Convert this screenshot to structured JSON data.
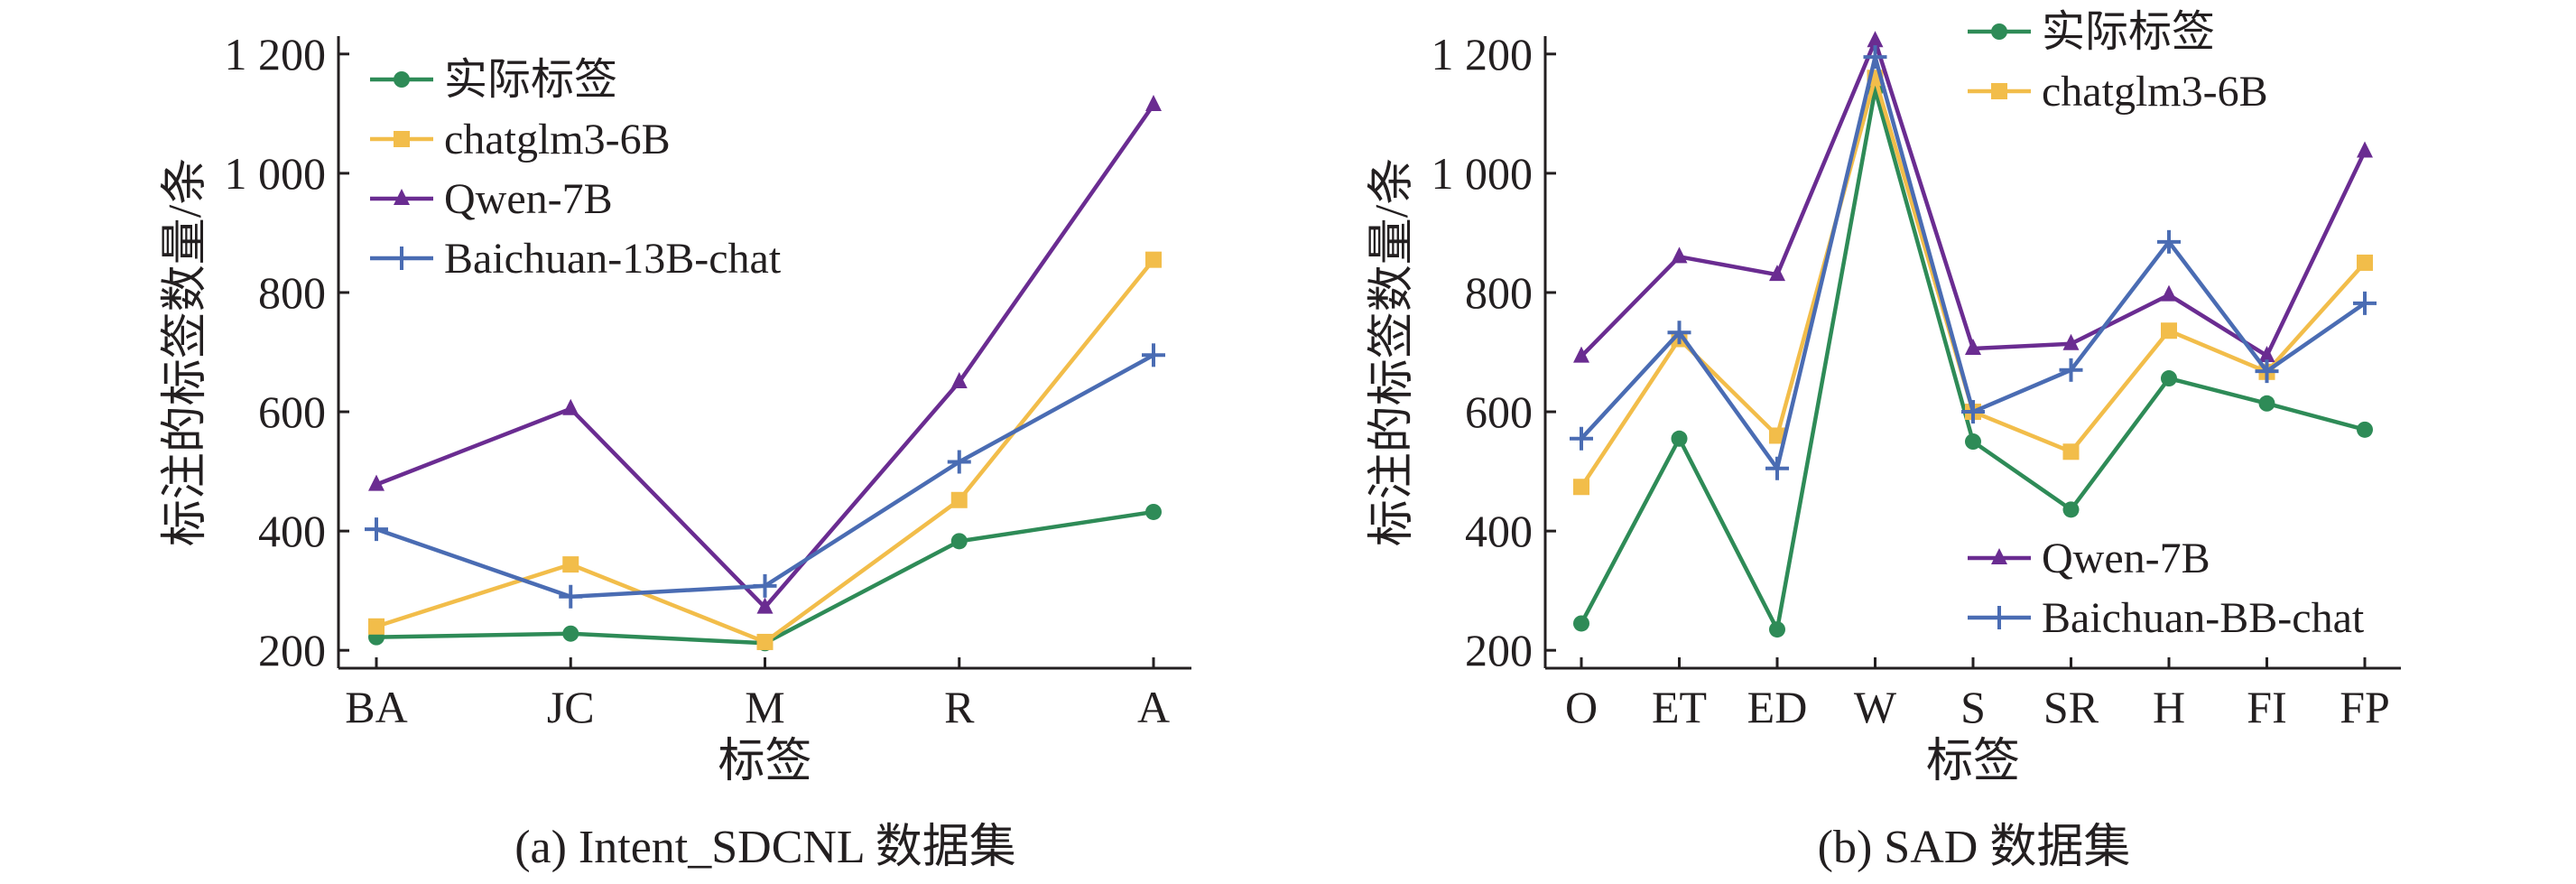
{
  "chart_data": [
    {
      "type": "line",
      "caption": "(a) Intent_SDCNL 数据集",
      "xlabel": "标签",
      "ylabel": "标注的标签数量/条",
      "ylim": [
        170,
        1230
      ],
      "yticks": [
        200,
        400,
        600,
        800,
        1000,
        1200
      ],
      "ytick_labels": [
        "200",
        "400",
        "600",
        "800",
        "1 000",
        "1 200"
      ],
      "categories": [
        "BA",
        "JC",
        "M",
        "R",
        "A"
      ],
      "legend_position": "top-left",
      "series": [
        {
          "name": "实际标签",
          "marker": "circle",
          "color": "#2e8b57",
          "values": [
            222,
            228,
            212,
            383,
            432
          ]
        },
        {
          "name": "chatglm3-6B",
          "marker": "square",
          "color": "#f2bd4a",
          "values": [
            240,
            344,
            214,
            452,
            855
          ]
        },
        {
          "name": "Qwen-7B",
          "marker": "triangle",
          "color": "#6a2c91",
          "values": [
            478,
            605,
            272,
            650,
            1115
          ]
        },
        {
          "name": "Baichuan-13B-chat",
          "marker": "plus",
          "color": "#4a6cb3",
          "values": [
            403,
            290,
            308,
            516,
            695
          ]
        }
      ]
    },
    {
      "type": "line",
      "caption": "(b) SAD 数据集",
      "xlabel": "标签",
      "ylabel": "标注的标签数量/条",
      "ylim": [
        170,
        1230
      ],
      "yticks": [
        200,
        400,
        600,
        800,
        1000,
        1200
      ],
      "ytick_labels": [
        "200",
        "400",
        "600",
        "800",
        "1 000",
        "1 200"
      ],
      "categories": [
        "O",
        "ET",
        "ED",
        "W",
        "S",
        "SR",
        "H",
        "FI",
        "FP"
      ],
      "legend_position": "split: top-left and bottom-right",
      "series": [
        {
          "name": "实际标签",
          "marker": "circle",
          "color": "#2e8b57",
          "values": [
            245,
            555,
            235,
            1140,
            550,
            436,
            656,
            614,
            570
          ]
        },
        {
          "name": "chatglm3-6B",
          "marker": "square",
          "color": "#f2bd4a",
          "values": [
            474,
            722,
            560,
            1160,
            600,
            533,
            736,
            667,
            850
          ]
        },
        {
          "name": "Qwen-7B",
          "marker": "triangle",
          "color": "#6a2c91",
          "values": [
            693,
            860,
            830,
            1222,
            706,
            714,
            796,
            694,
            1037
          ]
        },
        {
          "name": "Baichuan-BB-chat",
          "marker": "plus",
          "color": "#4a6cb3",
          "values": [
            555,
            733,
            505,
            1195,
            600,
            670,
            885,
            668,
            782
          ]
        }
      ]
    }
  ]
}
